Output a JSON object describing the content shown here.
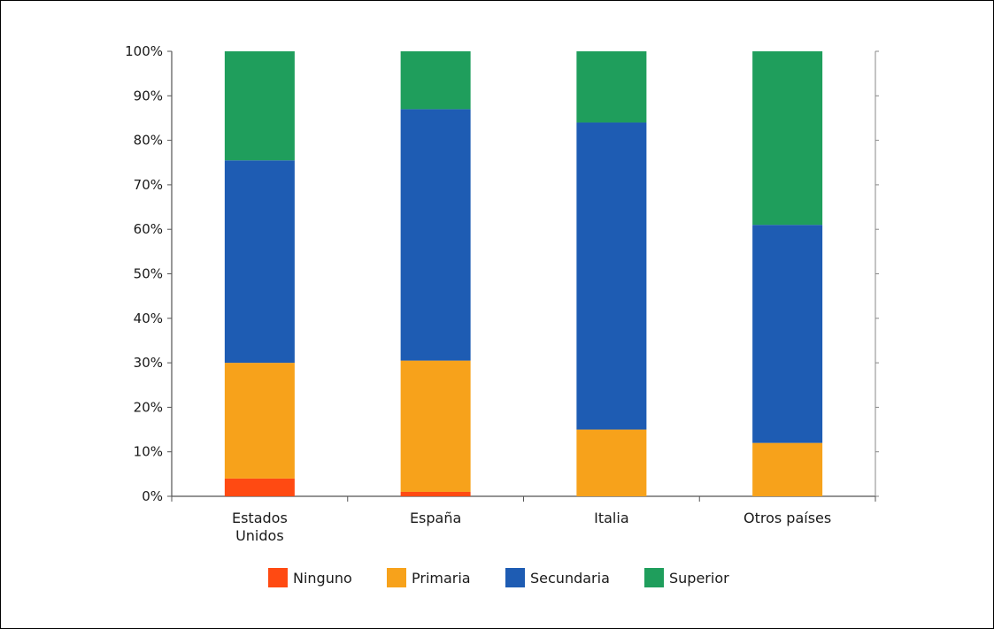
{
  "chart_data": {
    "type": "bar",
    "stacked": true,
    "categories": [
      "Estados Unidos",
      "España",
      "Italia",
      "Otros países"
    ],
    "category_labels": [
      [
        "Estados",
        "Unidos"
      ],
      [
        "España"
      ],
      [
        "Italia"
      ],
      [
        "Otros países"
      ]
    ],
    "series": [
      {
        "name": "Ninguno",
        "color": "#ff4a12",
        "values": [
          4,
          1,
          0,
          0
        ]
      },
      {
        "name": "Primaria",
        "color": "#f7a21b",
        "values": [
          26,
          29.5,
          15,
          12
        ]
      },
      {
        "name": "Secundaria",
        "color": "#1e5cb3",
        "values": [
          45.5,
          56.5,
          69,
          49
        ]
      },
      {
        "name": "Superior",
        "color": "#1f9e5c",
        "values": [
          24.5,
          13,
          16,
          39
        ]
      }
    ],
    "y_ticks": [
      "0%",
      "10%",
      "20%",
      "30%",
      "40%",
      "50%",
      "60%",
      "70%",
      "80%",
      "90%",
      "100%"
    ],
    "ylim": [
      0,
      100
    ],
    "grid": false,
    "legend_position": "bottom"
  }
}
